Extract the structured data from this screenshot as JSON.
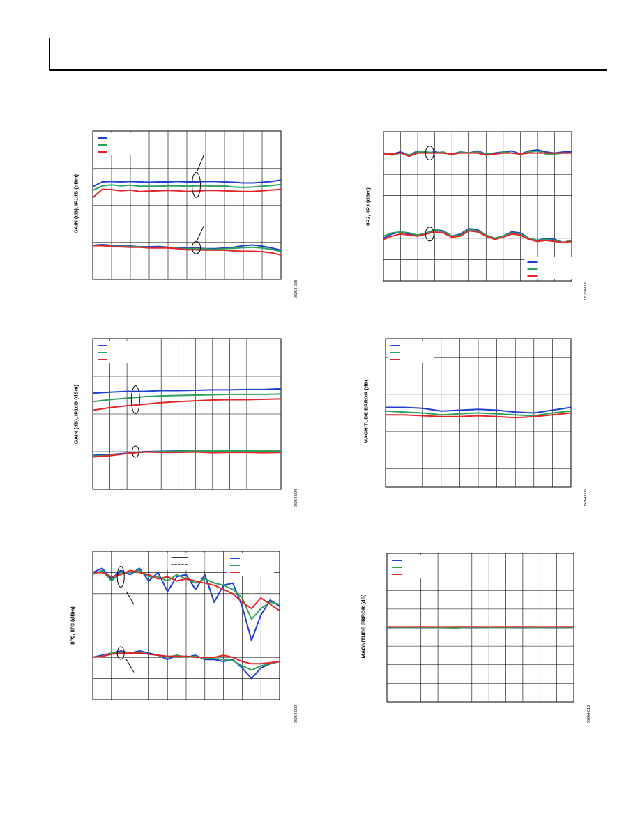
{
  "colors": {
    "blue": "#1f3fd0",
    "green": "#2ea15a",
    "red": "#e0262a",
    "black": "#000000",
    "grid": "#000000"
  },
  "charts": [
    {
      "id": "c1",
      "ylabel": "GAIN (dB), IP1dB (dBm)",
      "figure_id": "08264-003"
    },
    {
      "id": "c2",
      "ylabel": "IIP2, IIP3 (dBm)",
      "figure_id": "08264-006"
    },
    {
      "id": "c3",
      "ylabel": "GAIN (dB), IP1dB (dBm)",
      "figure_id": "08264-004"
    },
    {
      "id": "c4",
      "ylabel": "MAGNITUDE ERROR (dB)",
      "figure_id": "08264-005"
    },
    {
      "id": "c5",
      "ylabel": "IIP2, IIP3 (dBm)",
      "figure_id": "08264-009"
    },
    {
      "id": "c6",
      "ylabel": "MAGNITUDE ERROR (dB)",
      "figure_id": "08264-010"
    }
  ],
  "chart_data": [
    {
      "type": "line",
      "id": "c1",
      "x": [
        0,
        0.5,
        1,
        1.5,
        2,
        2.5,
        3,
        3.5,
        4,
        4.5,
        5,
        5.5,
        6,
        6.5,
        7,
        7.5,
        8,
        8.5,
        9,
        9.5,
        10
      ],
      "xlim": [
        0,
        10
      ],
      "ylim": [
        0,
        4
      ],
      "grid_x": 10,
      "grid_y": 4,
      "grid": true,
      "legend": "top-left",
      "series": [
        {
          "color": "blue",
          "values": [
            2.5,
            2.63,
            2.64,
            2.63,
            2.64,
            2.63,
            2.62,
            2.63,
            2.63,
            2.64,
            2.63,
            2.63,
            2.64,
            2.64,
            2.63,
            2.62,
            2.6,
            2.6,
            2.62,
            2.64,
            2.68
          ]
        },
        {
          "color": "green",
          "values": [
            2.4,
            2.52,
            2.55,
            2.52,
            2.54,
            2.51,
            2.51,
            2.51,
            2.52,
            2.52,
            2.51,
            2.52,
            2.52,
            2.51,
            2.52,
            2.49,
            2.48,
            2.49,
            2.51,
            2.53,
            2.56
          ]
        },
        {
          "color": "red",
          "values": [
            2.2,
            2.43,
            2.42,
            2.39,
            2.41,
            2.37,
            2.38,
            2.39,
            2.4,
            2.39,
            2.37,
            2.38,
            2.4,
            2.4,
            2.39,
            2.38,
            2.37,
            2.37,
            2.39,
            2.41,
            2.43
          ]
        },
        {
          "color": "blue",
          "values": [
            0.92,
            0.94,
            0.92,
            0.9,
            0.9,
            0.88,
            0.88,
            0.89,
            0.87,
            0.86,
            0.84,
            0.85,
            0.83,
            0.83,
            0.85,
            0.87,
            0.91,
            0.93,
            0.9,
            0.85,
            0.79
          ]
        },
        {
          "color": "green",
          "values": [
            0.92,
            0.93,
            0.9,
            0.89,
            0.88,
            0.88,
            0.86,
            0.87,
            0.86,
            0.84,
            0.82,
            0.83,
            0.82,
            0.81,
            0.83,
            0.84,
            0.86,
            0.87,
            0.85,
            0.81,
            0.76
          ]
        },
        {
          "color": "red",
          "values": [
            0.91,
            0.91,
            0.89,
            0.88,
            0.87,
            0.87,
            0.85,
            0.85,
            0.85,
            0.83,
            0.8,
            0.8,
            0.79,
            0.79,
            0.79,
            0.77,
            0.76,
            0.76,
            0.75,
            0.72,
            0.66
          ]
        }
      ]
    },
    {
      "type": "line",
      "id": "c2",
      "x": [
        0,
        0.5,
        1,
        1.5,
        2,
        2.5,
        3,
        3.5,
        4,
        4.5,
        5,
        5.5,
        6,
        6.5,
        7,
        7.5,
        8,
        8.5,
        9,
        9.5,
        10,
        10.5,
        11
      ],
      "xlim": [
        0,
        11
      ],
      "ylim": [
        0,
        7
      ],
      "grid_x": 11,
      "grid_y": 7,
      "grid": true,
      "legend": "bottom-right",
      "series": [
        {
          "color": "blue",
          "values": [
            6.0,
            5.95,
            6.05,
            5.9,
            6.1,
            6.0,
            6.05,
            6.0,
            5.95,
            6.05,
            6.0,
            6.1,
            5.95,
            6.0,
            6.05,
            6.1,
            5.95,
            6.1,
            6.15,
            6.05,
            6.0,
            6.05,
            6.05
          ]
        },
        {
          "color": "green",
          "values": [
            6.0,
            5.9,
            6.0,
            5.9,
            6.05,
            6.05,
            6.0,
            6.05,
            5.9,
            6.05,
            6.0,
            6.05,
            5.95,
            5.95,
            6.05,
            6.0,
            5.95,
            6.05,
            6.1,
            5.95,
            5.95,
            6.0,
            6.0
          ]
        },
        {
          "color": "red",
          "values": [
            5.95,
            5.95,
            6.0,
            5.85,
            6.0,
            6.0,
            6.0,
            6.0,
            5.95,
            6.0,
            6.0,
            6.0,
            5.9,
            5.95,
            6.0,
            6.0,
            5.95,
            6.0,
            6.0,
            6.0,
            6.0,
            6.0,
            6.0
          ]
        },
        {
          "color": "blue",
          "values": [
            2.0,
            2.2,
            2.3,
            2.2,
            2.1,
            2.2,
            2.4,
            2.35,
            2.1,
            2.2,
            2.45,
            2.4,
            2.15,
            2.0,
            2.1,
            2.3,
            2.25,
            2.0,
            1.9,
            2.0,
            1.95,
            1.8,
            1.9
          ]
        },
        {
          "color": "green",
          "values": [
            2.1,
            2.25,
            2.3,
            2.25,
            2.15,
            2.25,
            2.4,
            2.3,
            2.1,
            2.15,
            2.4,
            2.35,
            2.15,
            2.0,
            2.1,
            2.25,
            2.2,
            2.0,
            1.9,
            1.95,
            1.9,
            1.8,
            1.9
          ]
        },
        {
          "color": "red",
          "values": [
            1.95,
            2.1,
            2.2,
            2.15,
            2.1,
            2.2,
            2.3,
            2.25,
            2.05,
            2.1,
            2.35,
            2.3,
            2.1,
            1.95,
            2.05,
            2.2,
            2.15,
            1.95,
            1.85,
            1.9,
            1.85,
            1.8,
            1.85
          ]
        }
      ]
    },
    {
      "type": "line",
      "id": "c3",
      "x": [
        0,
        1,
        2,
        3,
        4,
        5,
        6,
        7,
        8,
        9,
        10,
        11
      ],
      "xlim": [
        0,
        11
      ],
      "ylim": [
        0,
        4
      ],
      "grid_x": 11,
      "grid_y": 4,
      "grid": true,
      "legend": "top-left",
      "series": [
        {
          "color": "blue",
          "values": [
            2.55,
            2.58,
            2.6,
            2.6,
            2.62,
            2.62,
            2.63,
            2.64,
            2.64,
            2.65,
            2.65,
            2.67
          ]
        },
        {
          "color": "green",
          "values": [
            2.33,
            2.38,
            2.42,
            2.46,
            2.48,
            2.49,
            2.5,
            2.51,
            2.52,
            2.52,
            2.52,
            2.53
          ]
        },
        {
          "color": "red",
          "values": [
            2.1,
            2.17,
            2.22,
            2.26,
            2.3,
            2.33,
            2.35,
            2.37,
            2.38,
            2.38,
            2.39,
            2.4
          ]
        },
        {
          "color": "blue",
          "values": [
            0.9,
            0.92,
            0.96,
            1.0,
            1.01,
            1.02,
            1.02,
            1.03,
            1.03,
            1.03,
            1.03,
            1.03
          ]
        },
        {
          "color": "green",
          "values": [
            0.88,
            0.9,
            0.95,
            0.99,
            1.0,
            1.01,
            1.02,
            1.02,
            1.02,
            1.02,
            1.02,
            1.02
          ]
        },
        {
          "color": "red",
          "values": [
            0.86,
            0.89,
            0.95,
            0.99,
            0.98,
            0.98,
            0.99,
            0.97,
            0.98,
            0.98,
            0.97,
            0.98
          ]
        }
      ]
    },
    {
      "type": "line",
      "id": "c4",
      "x": [
        0,
        1,
        2,
        3,
        4,
        5,
        6,
        7,
        8,
        9,
        10
      ],
      "xlim": [
        0,
        10
      ],
      "ylim": [
        -4,
        4
      ],
      "grid_x": 10,
      "grid_y": 8,
      "grid": true,
      "legend": "top-left",
      "series": [
        {
          "color": "blue",
          "values": [
            0.3,
            0.3,
            0.25,
            0.1,
            0.15,
            0.2,
            0.15,
            0.05,
            0.0,
            0.15,
            0.3
          ]
        },
        {
          "color": "green",
          "values": [
            0.1,
            0.05,
            0.0,
            -0.1,
            -0.05,
            0.0,
            -0.05,
            -0.1,
            -0.15,
            0.0,
            0.1
          ]
        },
        {
          "color": "red",
          "values": [
            -0.1,
            -0.1,
            -0.15,
            -0.2,
            -0.2,
            -0.15,
            -0.2,
            -0.25,
            -0.2,
            -0.1,
            0.0
          ]
        }
      ]
    },
    {
      "type": "line",
      "id": "c5",
      "x": [
        0,
        0.5,
        1,
        1.5,
        2,
        2.5,
        3,
        3.5,
        4,
        4.5,
        5,
        5.5,
        6,
        6.5,
        7,
        7.5,
        8,
        8.5,
        9,
        9.5,
        10
      ],
      "xlim": [
        0,
        10
      ],
      "ylim": [
        0,
        7
      ],
      "grid_x": 10,
      "grid_y": 7,
      "grid": true,
      "legend": "top-right",
      "series": [
        {
          "color": "blue",
          "values": [
            6.0,
            6.2,
            5.7,
            6.1,
            5.9,
            6.2,
            5.6,
            6.0,
            5.1,
            5.8,
            5.9,
            5.2,
            5.9,
            4.6,
            5.4,
            5.5,
            4.4,
            2.8,
            4.0,
            4.7,
            4.4
          ]
        },
        {
          "color": "green",
          "values": [
            5.9,
            6.1,
            5.6,
            6.0,
            6.0,
            6.1,
            5.8,
            5.8,
            5.6,
            5.9,
            5.7,
            5.5,
            5.7,
            5.5,
            5.4,
            5.2,
            4.8,
            3.8,
            4.3,
            4.6,
            4.5
          ]
        },
        {
          "color": "red",
          "values": [
            6.0,
            6.0,
            5.8,
            5.9,
            6.1,
            6.0,
            5.9,
            5.7,
            5.8,
            5.6,
            5.7,
            5.6,
            5.5,
            5.4,
            5.2,
            5.0,
            4.6,
            4.3,
            4.8,
            4.5,
            4.2
          ]
        },
        {
          "color": "blue",
          "values": [
            2.0,
            2.1,
            2.2,
            2.3,
            2.2,
            2.3,
            2.2,
            2.1,
            1.9,
            2.1,
            2.0,
            2.1,
            1.9,
            1.9,
            1.8,
            1.9,
            1.5,
            1.0,
            1.5,
            1.7,
            1.8
          ]
        },
        {
          "color": "green",
          "values": [
            2.0,
            2.05,
            2.2,
            2.25,
            2.2,
            2.25,
            2.15,
            2.1,
            2.0,
            2.1,
            2.0,
            2.05,
            1.95,
            1.95,
            1.9,
            1.85,
            1.6,
            1.4,
            1.6,
            1.7,
            1.8
          ]
        },
        {
          "color": "red",
          "values": [
            2.0,
            2.05,
            2.15,
            2.2,
            2.2,
            2.2,
            2.15,
            2.1,
            2.05,
            2.05,
            2.05,
            2.0,
            2.0,
            2.0,
            2.1,
            2.0,
            1.8,
            1.7,
            1.7,
            1.75,
            1.8
          ]
        }
      ]
    },
    {
      "type": "line",
      "id": "c6",
      "x": [
        0,
        1,
        2,
        3,
        4,
        5,
        6,
        7,
        8,
        9,
        10,
        11
      ],
      "xlim": [
        0,
        11
      ],
      "ylim": [
        -4,
        4
      ],
      "grid_x": 11,
      "grid_y": 8,
      "grid": true,
      "legend": "top-left",
      "series": [
        {
          "color": "blue",
          "values": [
            0,
            0,
            0,
            0,
            0,
            0,
            0,
            0,
            0,
            0,
            0,
            0
          ]
        },
        {
          "color": "green",
          "values": [
            0.02,
            0.0,
            0.02,
            0.0,
            -0.02,
            0.02,
            0.0,
            0.0,
            0.02,
            0.0,
            0.02,
            0.0
          ]
        },
        {
          "color": "red",
          "values": [
            0.05,
            0.04,
            0.05,
            0.04,
            0.05,
            0.05,
            0.04,
            0.05,
            0.05,
            0.04,
            0.05,
            0.05
          ]
        }
      ]
    }
  ]
}
